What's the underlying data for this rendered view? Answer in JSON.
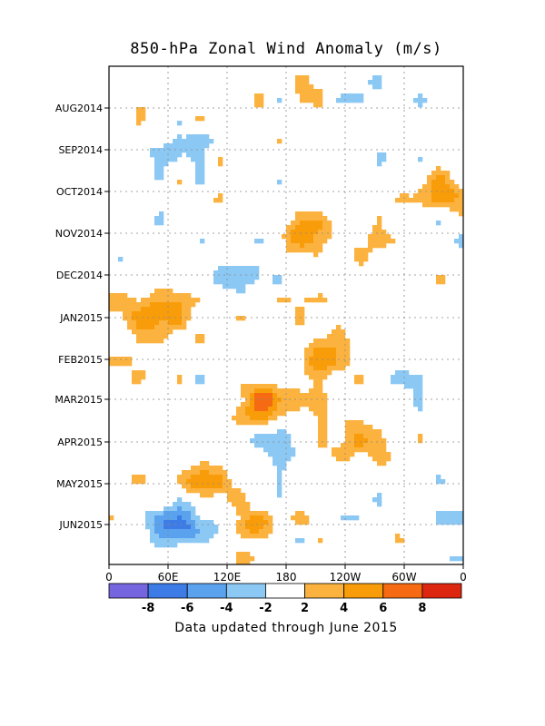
{
  "chart_data": {
    "type": "heatmap",
    "title": "850-hPa Zonal Wind Anomaly (m/s)",
    "xlabel": "",
    "ylabel": "",
    "x_ticks": [
      "0",
      "60E",
      "120E",
      "180",
      "120W",
      "60W",
      "0"
    ],
    "y_ticks": [
      "AUG2014",
      "SEP2014",
      "OCT2014",
      "NOV2014",
      "DEC2014",
      "JAN2015",
      "FEB2015",
      "MAR2015",
      "APR2015",
      "MAY2015",
      "JUN2015"
    ],
    "y_order": "time increases downward",
    "contour_label": "0",
    "colorbar": {
      "tick_labels": [
        "-8",
        "-6",
        "-4",
        "-2",
        "2",
        "4",
        "6",
        "8"
      ],
      "levels": [
        -10,
        -8,
        -6,
        -4,
        -2,
        2,
        4,
        6,
        8,
        10
      ],
      "colors": [
        "#7565de",
        "#3d7ce6",
        "#5aa2ee",
        "#8cc8f4",
        "#ffffff",
        "#fbb23f",
        "#f99c0a",
        "#f56a12",
        "#dd2610"
      ]
    },
    "features": [
      {
        "lon": 160,
        "month": "MAR2015",
        "anomaly": 8,
        "sign": "westerly"
      },
      {
        "lon": 50,
        "month": "JAN2015",
        "anomaly": 6,
        "sign": "westerly"
      },
      {
        "lon": 100,
        "month": "MAY2015",
        "anomaly": 5,
        "sign": "westerly"
      },
      {
        "lon": 145,
        "month": "JUN2015",
        "anomaly": 5,
        "sign": "westerly"
      },
      {
        "lon": 75,
        "month": "JUN2015",
        "anomaly": -7,
        "sign": "easterly"
      },
      {
        "lon": 135,
        "month": "DEC2014",
        "anomaly": -5,
        "sign": "easterly"
      },
      {
        "lon": 210,
        "month": "FEB2015",
        "anomaly": 4,
        "sign": "westerly"
      },
      {
        "lon": 250,
        "month": "APR2015",
        "anomaly": 5,
        "sign": "westerly"
      },
      {
        "lon": 345,
        "month": "OCT2014",
        "anomaly": 4,
        "sign": "westerly"
      },
      {
        "lon": 55,
        "month": "SEP2014",
        "anomaly": -3,
        "sign": "easterly"
      },
      {
        "lon": 175,
        "month": "APR2015",
        "anomaly": -3,
        "sign": "easterly"
      },
      {
        "lon": 205,
        "month": "NOV2014",
        "anomaly": 4,
        "sign": "westerly"
      }
    ]
  },
  "footer": {
    "note": "Data updated through June 2015"
  }
}
